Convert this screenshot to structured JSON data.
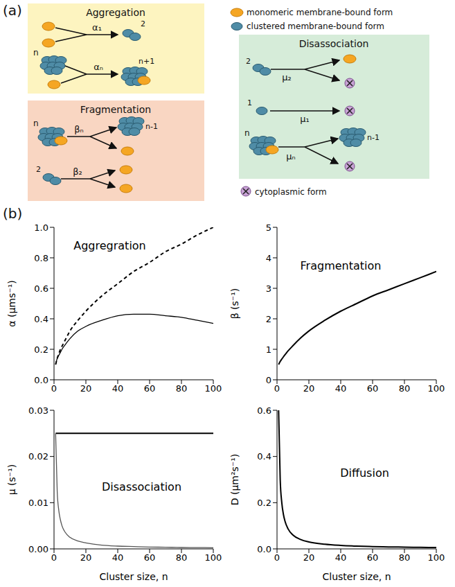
{
  "diagram": {
    "panel_labels": [
      "(a)",
      "(b)"
    ],
    "key": {
      "monomeric": "monomeric membrane-bound form",
      "clustered": "clustered membrane-bound form",
      "cytoplasmic": "cytoplasmic form"
    },
    "aggregation": {
      "title": "Aggregation",
      "rates": [
        "α₁",
        "αₙ"
      ],
      "sizes": [
        "2",
        "n",
        "n+1"
      ]
    },
    "fragmentation": {
      "title": "Fragmentation",
      "rates": [
        "βₙ",
        "β₂"
      ],
      "sizes": [
        "n",
        "n-1",
        "2"
      ]
    },
    "disassociation": {
      "title": "Disassociation",
      "rates": [
        "μ₂",
        "μ₁",
        "μₙ"
      ],
      "sizes": [
        "2",
        "1",
        "n",
        "n-1"
      ]
    }
  },
  "chart_data": [
    {
      "type": "line",
      "title": "Aggregration",
      "ylabel": "α (μms⁻¹)",
      "x": [
        1,
        2,
        3,
        4,
        5,
        7,
        10,
        15,
        20,
        30,
        40,
        50,
        60,
        70,
        80,
        90,
        100
      ],
      "xlim": [
        0,
        100
      ],
      "xticks": [
        0,
        20,
        40,
        60,
        80,
        100
      ],
      "ylim": [
        0,
        1
      ],
      "yticks": [
        {
          "value": 0,
          "label": "0.0"
        },
        {
          "value": 0.2,
          "label": "0.2"
        },
        {
          "value": 0.4,
          "label": "0.4"
        },
        {
          "value": 0.6,
          "label": "0.6"
        },
        {
          "value": 0.8,
          "label": "0.8"
        },
        {
          "value": 1,
          "label": "1.0"
        }
      ],
      "series": [
        {
          "color": "#000000",
          "line_style": "dashed",
          "values": [
            0.1,
            0.14,
            0.17,
            0.2,
            0.22,
            0.26,
            0.32,
            0.39,
            0.45,
            0.55,
            0.63,
            0.71,
            0.77,
            0.84,
            0.89,
            0.95,
            1.0
          ]
        },
        {
          "color": "#000000",
          "line_style": "solid",
          "values": [
            0.1,
            0.14,
            0.16,
            0.18,
            0.2,
            0.23,
            0.27,
            0.32,
            0.35,
            0.39,
            0.42,
            0.43,
            0.43,
            0.42,
            0.41,
            0.39,
            0.37
          ]
        }
      ]
    },
    {
      "type": "line",
      "title": "Fragmentation",
      "ylabel": "β (s⁻¹)",
      "x": [
        1,
        2,
        3,
        4,
        5,
        7,
        10,
        15,
        20,
        30,
        40,
        50,
        60,
        70,
        80,
        90,
        100
      ],
      "xlim": [
        0,
        100
      ],
      "xticks": [
        0,
        20,
        40,
        60,
        80,
        100
      ],
      "ylim": [
        0,
        5
      ],
      "yticks": [
        0,
        1,
        2,
        3,
        4,
        5
      ],
      "series": [
        {
          "color": "#000000",
          "line_style": "solid",
          "values": [
            0.5,
            0.6,
            0.68,
            0.75,
            0.82,
            0.95,
            1.12,
            1.38,
            1.6,
            1.95,
            2.25,
            2.5,
            2.75,
            2.95,
            3.15,
            3.35,
            3.55
          ]
        }
      ]
    },
    {
      "type": "line",
      "title": "Disassociation",
      "ylabel": "μ (s⁻¹)",
      "xlabel": "Cluster size, n",
      "x": [
        1,
        2,
        3,
        4,
        5,
        7,
        10,
        15,
        20,
        30,
        40,
        50,
        60,
        70,
        80,
        90,
        100
      ],
      "xlim": [
        0,
        100
      ],
      "xticks": [
        0,
        20,
        40,
        60,
        80,
        100
      ],
      "ylim": [
        0,
        0.03
      ],
      "yticks": [
        {
          "value": 0,
          "label": "0.00"
        },
        {
          "value": 0.01,
          "label": "0.01"
        },
        {
          "value": 0.02,
          "label": "0.02"
        },
        {
          "value": 0.03,
          "label": "0.03"
        }
      ],
      "series": [
        {
          "color": "#000000",
          "line_style": "solid",
          "values": [
            0.025,
            0.025,
            0.025,
            0.025,
            0.025,
            0.025,
            0.025,
            0.025,
            0.025,
            0.025,
            0.025,
            0.025,
            0.025,
            0.025,
            0.025,
            0.025,
            0.025
          ]
        },
        {
          "color": "#555555",
          "line_style": "solid",
          "values": [
            0.025,
            0.0125,
            0.0083,
            0.0063,
            0.005,
            0.0036,
            0.0025,
            0.0017,
            0.0013,
            0.0008,
            0.0006,
            0.0005,
            0.0004,
            0.00036,
            0.0003,
            0.00028,
            0.00025
          ]
        }
      ]
    },
    {
      "type": "line",
      "title": "Diffusion",
      "ylabel": "D (μm²s⁻¹)",
      "xlabel": "Cluster size, n",
      "x": [
        1,
        2,
        3,
        4,
        5,
        7,
        10,
        15,
        20,
        30,
        40,
        50,
        60,
        70,
        80,
        90,
        100
      ],
      "xlim": [
        0,
        100
      ],
      "xticks": [
        0,
        20,
        40,
        60,
        80,
        100
      ],
      "ylim": [
        0,
        0.6
      ],
      "yticks": [
        {
          "value": 0,
          "label": "0.0"
        },
        {
          "value": 0.2,
          "label": "0.2"
        },
        {
          "value": 0.4,
          "label": "0.4"
        },
        {
          "value": 0.6,
          "label": "0.6"
        }
      ],
      "series": [
        {
          "color": "#000000",
          "line_style": "solid",
          "values": [
            0.6,
            0.3,
            0.2,
            0.15,
            0.12,
            0.086,
            0.06,
            0.04,
            0.03,
            0.02,
            0.015,
            0.012,
            0.01,
            0.0086,
            0.0075,
            0.0067,
            0.006
          ]
        }
      ]
    }
  ]
}
